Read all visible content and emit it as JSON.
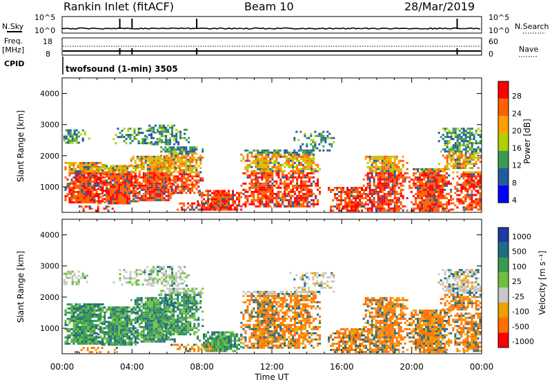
{
  "header": {
    "station": "Rankin Inlet (fitACF)",
    "beam": "Beam 10",
    "date": "28/Mar/2019"
  },
  "summary_panels": {
    "nsky": {
      "left_label": "N.Sky",
      "left_ticks": [
        "10^5",
        "10^0"
      ],
      "right_ticks": [
        "10^5",
        "10^0"
      ],
      "right_label": "N.Search"
    },
    "freq": {
      "left_label": "Freq.",
      "left_unit": "[MHz]",
      "left_ticks": [
        "18",
        "8"
      ],
      "right_ticks": [
        "60",
        "0"
      ],
      "right_label": "Nave"
    },
    "cpid": {
      "label": "CPID",
      "text": "twofsound (1-min) 3505"
    }
  },
  "chart_data": [
    {
      "type": "heatmap",
      "name": "power",
      "ylabel": "Slant Range [km]",
      "xlabel": "",
      "yticks": [
        "4000",
        "3000",
        "2000",
        "1000"
      ],
      "ytick_values": [
        4000,
        3000,
        2000,
        1000
      ],
      "ylim": [
        180,
        4500
      ],
      "xlim": [
        0,
        24
      ],
      "colorbar": {
        "label": "Power [dB]",
        "tick_labels": [
          "28",
          "24",
          "20",
          "16",
          "12",
          "8",
          "4"
        ],
        "colors": [
          "#ff0000",
          "#ff6000",
          "#ff9f00",
          "#b0d000",
          "#3c9a50",
          "#1f5c9e",
          "#0000ff"
        ]
      }
    },
    {
      "type": "heatmap",
      "name": "velocity",
      "ylabel": "Slant Range [km]",
      "xlabel": "Time UT",
      "yticks": [
        "4000",
        "3000",
        "2000",
        "1000"
      ],
      "ytick_values": [
        4000,
        3000,
        2000,
        1000
      ],
      "ylim": [
        180,
        4500
      ],
      "xlim": [
        0,
        24
      ],
      "xtick_labels": [
        "00:00",
        "04:00",
        "08:00",
        "12:00",
        "16:00",
        "20:00",
        "00:00"
      ],
      "xtick_values": [
        0,
        4,
        8,
        12,
        16,
        20,
        24
      ],
      "colorbar": {
        "label": "Velocity [m s⁻¹]",
        "tick_labels": [
          "1000",
          "500",
          "100",
          "25",
          "-25",
          "-100",
          "-500",
          "-1000"
        ],
        "colors": [
          "#1f3aa0",
          "#1f6c80",
          "#3a9a50",
          "#70c040",
          "#c8c8c8",
          "#f0a000",
          "#ff7000",
          "#ff0000"
        ]
      }
    }
  ],
  "colors": {
    "background": "#ffffff",
    "ground_scatter": "#c0c0c0"
  }
}
